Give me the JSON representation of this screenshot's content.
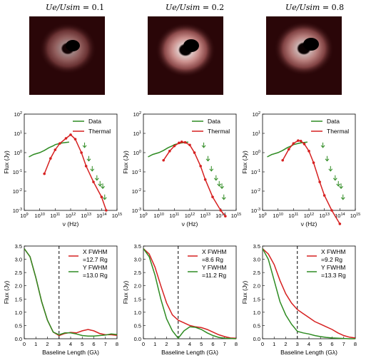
{
  "images": [
    {
      "label": "U_e/U_sim = 0.1",
      "lhs": "Ue/Usim",
      "rhs": "= 0.1",
      "brightness": 0.55
    },
    {
      "label": "U_e/U_sim = 0.2",
      "lhs": "Ue/Usim",
      "rhs": "= 0.2",
      "brightness": 0.85
    },
    {
      "label": "U_e/U_sim = 0.8",
      "lhs": "Ue/Usim",
      "rhs": "= 0.8",
      "brightness": 0.75
    }
  ],
  "colors": {
    "data": "#2e8b22",
    "thermal": "#d62020",
    "image_bg": "#2a0608"
  },
  "chart_data": [
    {
      "type": "line",
      "xlabel": "ν (Hz)",
      "ylabel": "Flux (Jy)",
      "xscale": "log",
      "yscale": "log",
      "xlim": [
        1000000000.0,
        1000000000000000.0
      ],
      "ylim": [
        0.001,
        100
      ],
      "xticks": [
        9,
        10,
        11,
        12,
        13,
        14,
        15
      ],
      "yticks": [
        -3,
        -2,
        -1,
        0,
        1,
        2
      ],
      "legend": [
        "Data",
        "Thermal"
      ],
      "legend_position": "top-right",
      "series": [
        {
          "name": "Data",
          "x": [
            2000000000.0,
            4000000000.0,
            10000000000.0,
            20000000000.0,
            40000000000.0,
            80000000000.0,
            100000000000.0,
            200000000000.0,
            300000000000.0,
            500000000000.0,
            800000000000.0
          ],
          "y": [
            0.6,
            0.8,
            1.0,
            1.3,
            1.8,
            2.3,
            2.6,
            3.0,
            3.2,
            3.4,
            3.5
          ]
        },
        {
          "name": "Thermal",
          "x": [
            20000000000.0,
            50000000000.0,
            100000000000.0,
            200000000000.0,
            500000000000.0,
            1000000000000.0,
            2000000000000.0,
            5000000000000.0,
            10000000000000.0,
            30000000000000.0,
            100000000000000.0,
            200000000000000.0
          ],
          "y": [
            0.08,
            0.5,
            1.4,
            3.0,
            5.5,
            8.5,
            5.0,
            1.0,
            0.2,
            0.03,
            0.005,
            0.001
          ]
        },
        {
          "name": "upper limits",
          "marker": "down-arrow",
          "x": [
            8000000000000.0,
            15000000000000.0,
            25000000000000.0,
            50000000000000.0,
            80000000000000.0,
            120000000000000.0,
            160000000000000.0
          ],
          "y": [
            2.0,
            0.4,
            0.12,
            0.04,
            0.02,
            0.015,
            0.004
          ]
        }
      ]
    },
    {
      "type": "line",
      "xlabel": "ν (Hz)",
      "ylabel": "Flux (Jy)",
      "xscale": "log",
      "yscale": "log",
      "xlim": [
        1000000000.0,
        1000000000000000.0
      ],
      "ylim": [
        0.001,
        100
      ],
      "xticks": [
        9,
        10,
        11,
        12,
        13,
        14,
        15
      ],
      "yticks": [
        -3,
        -2,
        -1,
        0,
        1,
        2
      ],
      "legend": [
        "Data",
        "Thermal"
      ],
      "legend_position": "top-right",
      "series": [
        {
          "name": "Data",
          "x": [
            2000000000.0,
            4000000000.0,
            10000000000.0,
            20000000000.0,
            40000000000.0,
            80000000000.0,
            100000000000.0,
            200000000000.0,
            300000000000.0,
            500000000000.0,
            800000000000.0
          ],
          "y": [
            0.6,
            0.8,
            1.0,
            1.3,
            1.8,
            2.3,
            2.6,
            3.0,
            3.2,
            3.4,
            3.5
          ]
        },
        {
          "name": "Thermal",
          "x": [
            20000000000.0,
            50000000000.0,
            100000000000.0,
            200000000000.0,
            300000000000.0,
            500000000000.0,
            1000000000000.0,
            2000000000000.0,
            5000000000000.0,
            10000000000000.0,
            30000000000000.0,
            100000000000000.0,
            200000000000000.0
          ],
          "y": [
            0.4,
            1.2,
            2.2,
            3.2,
            3.6,
            3.4,
            2.5,
            1.0,
            0.2,
            0.04,
            0.005,
            0.001,
            0.0005
          ]
        },
        {
          "name": "upper limits",
          "marker": "down-arrow",
          "x": [
            8000000000000.0,
            15000000000000.0,
            25000000000000.0,
            50000000000000.0,
            80000000000000.0,
            120000000000000.0,
            160000000000000.0
          ],
          "y": [
            2.0,
            0.4,
            0.12,
            0.04,
            0.02,
            0.015,
            0.004
          ]
        }
      ]
    },
    {
      "type": "line",
      "xlabel": "ν (Hz)",
      "ylabel": "Flux (Jy)",
      "xscale": "log",
      "yscale": "log",
      "xlim": [
        1000000000.0,
        1000000000000000.0
      ],
      "ylim": [
        0.001,
        100
      ],
      "xticks": [
        9,
        10,
        11,
        12,
        13,
        14,
        15
      ],
      "yticks": [
        -3,
        -2,
        -1,
        0,
        1,
        2
      ],
      "legend": [
        "Data",
        "Thermal"
      ],
      "legend_position": "top-right",
      "series": [
        {
          "name": "Data",
          "x": [
            2000000000.0,
            4000000000.0,
            10000000000.0,
            20000000000.0,
            40000000000.0,
            80000000000.0,
            100000000000.0,
            200000000000.0,
            300000000000.0,
            500000000000.0,
            800000000000.0
          ],
          "y": [
            0.6,
            0.8,
            1.0,
            1.3,
            1.8,
            2.3,
            2.6,
            3.0,
            3.2,
            3.4,
            3.5
          ]
        },
        {
          "name": "Thermal",
          "x": [
            20000000000.0,
            50000000000.0,
            100000000000.0,
            200000000000.0,
            300000000000.0,
            500000000000.0,
            1000000000000.0,
            2000000000000.0,
            5000000000000.0,
            10000000000000.0,
            30000000000000.0,
            100000000000000.0
          ],
          "y": [
            0.4,
            1.5,
            3.0,
            4.2,
            4.0,
            2.8,
            1.2,
            0.3,
            0.03,
            0.006,
            0.001,
            0.0002
          ]
        },
        {
          "name": "upper limits",
          "marker": "down-arrow",
          "x": [
            8000000000000.0,
            15000000000000.0,
            25000000000000.0,
            50000000000000.0,
            80000000000000.0,
            120000000000000.0,
            160000000000000.0
          ],
          "y": [
            2.0,
            0.4,
            0.12,
            0.04,
            0.02,
            0.015,
            0.004
          ]
        }
      ]
    },
    {
      "type": "line",
      "xlabel": "Baseline Length (Gλ)",
      "ylabel": "Flux (Jy)",
      "xlim": [
        0,
        8
      ],
      "ylim": [
        0,
        3.5
      ],
      "xticks": [
        0,
        1,
        2,
        3,
        4,
        5,
        6,
        7,
        8
      ],
      "yticks": [
        0.0,
        0.5,
        1.0,
        1.5,
        2.0,
        2.5,
        3.0,
        3.5
      ],
      "vline": 3,
      "legend": [
        "X FWHM",
        "=12.7 Rg",
        "Y FWHM",
        "=13.0 Rg"
      ],
      "legend_position": "top-right",
      "series": [
        {
          "name": "X FWHM",
          "x": [
            0,
            0.5,
            1,
            1.5,
            2,
            2.5,
            3,
            3.5,
            4,
            4.5,
            5,
            5.5,
            6,
            6.5,
            7,
            7.5,
            8
          ],
          "y": [
            3.4,
            3.1,
            2.3,
            1.4,
            0.7,
            0.25,
            0.12,
            0.2,
            0.24,
            0.22,
            0.3,
            0.35,
            0.3,
            0.2,
            0.15,
            0.15,
            0.13
          ]
        },
        {
          "name": "Y FWHM",
          "x": [
            0,
            0.5,
            1,
            1.5,
            2,
            2.5,
            3,
            3.5,
            4,
            4.5,
            5,
            5.5,
            6,
            6.5,
            7,
            7.5,
            8
          ],
          "y": [
            3.4,
            3.1,
            2.3,
            1.4,
            0.7,
            0.25,
            0.15,
            0.22,
            0.22,
            0.18,
            0.12,
            0.1,
            0.1,
            0.12,
            0.14,
            0.18,
            0.16
          ]
        }
      ]
    },
    {
      "type": "line",
      "xlabel": "Baseline Length (Gλ)",
      "ylabel": "Flux (Jy)",
      "xlim": [
        0,
        8
      ],
      "ylim": [
        0,
        3.5
      ],
      "xticks": [
        0,
        1,
        2,
        3,
        4,
        5,
        6,
        7,
        8
      ],
      "yticks": [
        0.0,
        0.5,
        1.0,
        1.5,
        2.0,
        2.5,
        3.0,
        3.5
      ],
      "vline": 3,
      "legend": [
        "X FWHM",
        "=8.6 Rg",
        "Y FWHM",
        "=11.2 Rg"
      ],
      "legend_position": "top-right",
      "series": [
        {
          "name": "X FWHM",
          "x": [
            0,
            0.5,
            1,
            1.5,
            2,
            2.5,
            3,
            3.5,
            4,
            4.5,
            5,
            5.5,
            6,
            6.5,
            7,
            7.5,
            8
          ],
          "y": [
            3.4,
            3.2,
            2.7,
            2.0,
            1.35,
            0.9,
            0.7,
            0.6,
            0.5,
            0.45,
            0.42,
            0.35,
            0.25,
            0.15,
            0.08,
            0.03,
            0.02
          ]
        },
        {
          "name": "Y FWHM",
          "x": [
            0,
            0.5,
            1,
            1.5,
            2,
            2.5,
            3,
            3.5,
            4,
            4.5,
            5,
            5.5,
            6,
            6.5,
            7,
            7.5,
            8
          ],
          "y": [
            3.4,
            3.1,
            2.4,
            1.5,
            0.75,
            0.3,
            0.02,
            0.3,
            0.45,
            0.43,
            0.35,
            0.22,
            0.12,
            0.05,
            0.02,
            0.01,
            0.0
          ]
        }
      ]
    },
    {
      "type": "line",
      "xlabel": "Baseline Length (Gλ)",
      "ylabel": "Flux (Jy)",
      "xlim": [
        0,
        8
      ],
      "ylim": [
        0,
        3.5
      ],
      "xticks": [
        0,
        1,
        2,
        3,
        4,
        5,
        6,
        7,
        8
      ],
      "yticks": [
        0.0,
        0.5,
        1.0,
        1.5,
        2.0,
        2.5,
        3.0,
        3.5
      ],
      "vline": 3,
      "legend": [
        "X FWHM",
        "=9.2 Rg",
        "Y FWHM",
        "=13.3 Rg"
      ],
      "legend_position": "top-right",
      "series": [
        {
          "name": "X FWHM",
          "x": [
            0,
            0.5,
            1,
            1.5,
            2,
            2.5,
            3,
            3.5,
            4,
            4.5,
            5,
            5.5,
            6,
            6.5,
            7,
            7.5,
            8
          ],
          "y": [
            3.4,
            3.2,
            2.8,
            2.2,
            1.7,
            1.35,
            1.1,
            0.95,
            0.8,
            0.65,
            0.55,
            0.45,
            0.35,
            0.22,
            0.12,
            0.06,
            0.03
          ]
        },
        {
          "name": "Y FWHM",
          "x": [
            0,
            0.5,
            1,
            1.5,
            2,
            2.5,
            3,
            3.5,
            4,
            4.5,
            5,
            5.5,
            6,
            6.5,
            7,
            7.5,
            8
          ],
          "y": [
            3.4,
            3.0,
            2.2,
            1.4,
            0.9,
            0.55,
            0.28,
            0.22,
            0.18,
            0.12,
            0.08,
            0.05,
            0.03,
            0.02,
            0.01,
            0.0,
            0.0
          ]
        }
      ]
    }
  ]
}
